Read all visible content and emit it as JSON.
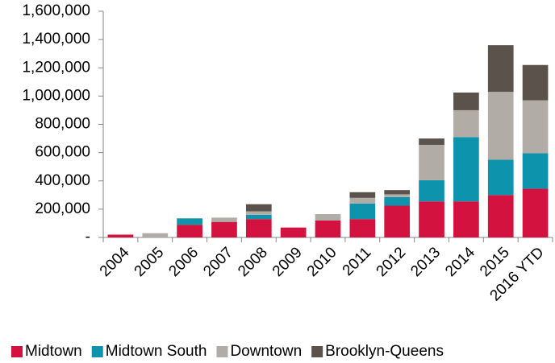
{
  "chart_data": {
    "type": "stacked_bar",
    "categories": [
      "2004",
      "2005",
      "2006",
      "2007",
      "2008",
      "2009",
      "2010",
      "2011",
      "2012",
      "2013",
      "2014",
      "2015",
      "2016 YTD"
    ],
    "series": [
      {
        "name": "Midtown",
        "color": "#d4123f",
        "values": [
          20000,
          0,
          90000,
          110000,
          130000,
          70000,
          120000,
          130000,
          225000,
          255000,
          255000,
          300000,
          345000
        ]
      },
      {
        "name": "Midtown South",
        "color": "#0e93ad",
        "values": [
          0,
          0,
          45000,
          0,
          30000,
          0,
          0,
          110000,
          60000,
          150000,
          455000,
          250000,
          250000
        ]
      },
      {
        "name": "Downtown",
        "color": "#b1aca6",
        "values": [
          0,
          30000,
          0,
          30000,
          25000,
          0,
          45000,
          40000,
          20000,
          250000,
          190000,
          480000,
          375000
        ]
      },
      {
        "name": "Brooklyn-Queens",
        "color": "#5b524c",
        "values": [
          0,
          0,
          0,
          0,
          50000,
          0,
          0,
          40000,
          30000,
          45000,
          125000,
          330000,
          250000
        ]
      }
    ],
    "ylim": [
      0,
      1600000
    ],
    "yticks": [
      {
        "value": 0,
        "label": "-"
      },
      {
        "value": 200000,
        "label": "200,000"
      },
      {
        "value": 400000,
        "label": "400,000"
      },
      {
        "value": 600000,
        "label": "600,000"
      },
      {
        "value": 800000,
        "label": "800,000"
      },
      {
        "value": 1000000,
        "label": "1,000,000"
      },
      {
        "value": 1200000,
        "label": "1,200,000"
      },
      {
        "value": 1400000,
        "label": "1,400,000"
      },
      {
        "value": 1600000,
        "label": "1,600,000"
      }
    ],
    "grid": false,
    "legend": "bottom"
  }
}
